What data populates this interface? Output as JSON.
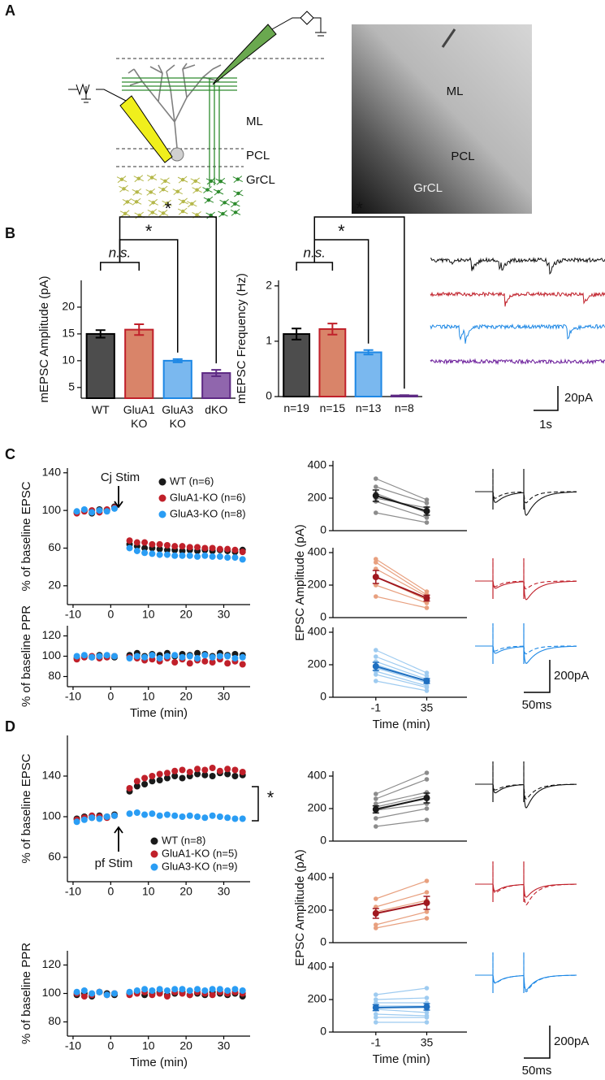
{
  "panel_labels": [
    "A",
    "B",
    "C",
    "D"
  ],
  "schematic": {
    "labels": [
      "ML",
      "PCL",
      "GrCL"
    ]
  },
  "micrograph": {
    "labels": [
      "ML",
      "PCL",
      "GrCL"
    ]
  },
  "traces_B": {
    "scale_y": "20pA",
    "scale_x": "1s"
  },
  "traces_C": {
    "scale_y": "200pA",
    "scale_x": "50ms"
  },
  "traces_D": {
    "scale_y": "200pA",
    "scale_x": "50ms"
  },
  "chart_data": [
    {
      "type": "bar",
      "ylabel": "mEPSC Amplitude (pA)",
      "categories": [
        "WT",
        "GluA1 KO",
        "GluA3 KO",
        "dKO"
      ],
      "values": [
        15,
        15.8,
        10,
        7.7
      ],
      "errors": [
        0.7,
        1,
        0.3,
        0.6
      ],
      "colors": [
        "#4d4d4d",
        "#d98469",
        "#7ab8ef",
        "#9066ad"
      ],
      "edge_colors": [
        "#000000",
        "#c0202a",
        "#1e88e5",
        "#5e2a84"
      ],
      "ylim": [
        3,
        25
      ],
      "yticks": [
        5,
        10,
        15,
        20
      ],
      "annotations": [
        "n.s.",
        "*",
        "*"
      ]
    },
    {
      "type": "bar",
      "ylabel": "mEPSC Frequency (Hz)",
      "categories": [
        "n=19",
        "n=15",
        "n=13",
        "n=8"
      ],
      "values": [
        1.13,
        1.22,
        0.8,
        0.02
      ],
      "errors": [
        0.1,
        0.1,
        0.04,
        0.005
      ],
      "colors": [
        "#4d4d4d",
        "#d98469",
        "#7ab8ef",
        "#9066ad"
      ],
      "edge_colors": [
        "#000000",
        "#c0202a",
        "#1e88e5",
        "#5e2a84"
      ],
      "ylim": [
        0,
        2.1
      ],
      "yticks": [
        0,
        1,
        2
      ],
      "annotations": [
        "n.s.",
        "*",
        "*"
      ]
    },
    {
      "type": "scatter",
      "ylabel": "% of baseline EPSC",
      "stim": "Cj Stim",
      "x": [
        -9,
        -7,
        -5,
        -3,
        -1,
        1,
        5,
        7,
        9,
        11,
        13,
        15,
        17,
        19,
        21,
        23,
        25,
        27,
        29,
        31,
        33,
        35
      ],
      "xlim": [
        -11.5,
        37
      ],
      "xticks": [
        -10,
        0,
        10,
        20,
        30
      ],
      "ylim": [
        0,
        145
      ],
      "yticks": [
        20,
        60,
        100,
        140
      ],
      "series": [
        {
          "name": "WT (n=6)",
          "color": "#1a1a1a",
          "values": [
            98,
            100,
            97,
            101,
            100,
            104,
            64,
            62,
            60,
            60,
            59,
            58,
            58,
            57,
            58,
            57,
            58,
            57,
            58,
            57,
            56,
            58
          ]
        },
        {
          "name": "GluA1-KO (n=6)",
          "color": "#c0202a",
          "values": [
            97,
            99,
            100,
            98,
            101,
            103,
            68,
            66,
            66,
            64,
            64,
            63,
            62,
            62,
            61,
            61,
            60,
            60,
            59,
            59,
            58,
            56
          ]
        },
        {
          "name": "GluA3-KO (n=8)",
          "color": "#2a9df4",
          "values": [
            99,
            101,
            98,
            100,
            99,
            102,
            60,
            57,
            55,
            54,
            53,
            53,
            52,
            52,
            52,
            51,
            52,
            51,
            51,
            50,
            50,
            48
          ]
        }
      ]
    },
    {
      "type": "scatter",
      "ylabel": "% of baseline PPR",
      "xlabel": "Time (min)",
      "x": [
        -9,
        -7,
        -5,
        -3,
        -1,
        1,
        5,
        7,
        9,
        11,
        13,
        15,
        17,
        19,
        21,
        23,
        25,
        27,
        29,
        31,
        33,
        35
      ],
      "xlim": [
        -11.5,
        37
      ],
      "xticks": [
        -10,
        0,
        10,
        20,
        30
      ],
      "ylim": [
        70,
        130
      ],
      "yticks": [
        80,
        100,
        120
      ],
      "series": [
        {
          "color": "#1a1a1a",
          "values": [
            98,
            100,
            99,
            101,
            100,
            99,
            101,
            103,
            100,
            102,
            101,
            103,
            100,
            102,
            101,
            103,
            102,
            100,
            103,
            101,
            102,
            101
          ]
        },
        {
          "color": "#c0202a",
          "values": [
            97,
            99,
            100,
            98,
            99,
            100,
            99,
            98,
            96,
            97,
            95,
            98,
            94,
            97,
            93,
            96,
            95,
            94,
            97,
            93,
            95,
            92
          ]
        },
        {
          "color": "#2a9df4",
          "values": [
            100,
            101,
            99,
            100,
            101,
            100,
            98,
            100,
            99,
            101,
            98,
            100,
            101,
            99,
            100,
            98,
            101,
            99,
            100,
            100,
            98,
            99
          ]
        }
      ]
    },
    {
      "type": "paired",
      "ylim": [
        0,
        430
      ],
      "yticks": [
        0,
        200,
        400
      ],
      "color": "#1a1a1a",
      "cell_color": "#8c8c8c",
      "cells": [
        [
          320,
          190
        ],
        [
          270,
          170
        ],
        [
          230,
          110
        ],
        [
          180,
          80
        ],
        [
          110,
          50
        ],
        [
          200,
          140
        ]
      ],
      "mean": [
        215,
        120
      ],
      "sem": [
        35,
        25
      ]
    },
    {
      "type": "paired",
      "ylabel": "EPSC Amplitude (pA)",
      "ylim": [
        0,
        430
      ],
      "yticks": [
        0,
        200,
        400
      ],
      "color": "#a01820",
      "cell_color": "#e8a07f",
      "cells": [
        [
          360,
          160
        ],
        [
          340,
          140
        ],
        [
          300,
          130
        ],
        [
          250,
          110
        ],
        [
          200,
          90
        ],
        [
          130,
          60
        ]
      ],
      "mean": [
        250,
        120
      ],
      "sem": [
        40,
        18
      ]
    },
    {
      "type": "paired",
      "xlabel": "Time (min)",
      "categories": [
        "-1",
        "35"
      ],
      "ylim": [
        0,
        430
      ],
      "yticks": [
        0,
        200,
        400
      ],
      "color": "#1e6fc0",
      "cell_color": "#9ecbf0",
      "cells": [
        [
          290,
          150
        ],
        [
          250,
          130
        ],
        [
          220,
          110
        ],
        [
          200,
          100
        ],
        [
          180,
          90
        ],
        [
          160,
          70
        ],
        [
          140,
          60
        ],
        [
          100,
          40
        ]
      ],
      "mean": [
        190,
        100
      ],
      "sem": [
        25,
        15
      ]
    },
    {
      "type": "scatter",
      "ylabel": "% of baseline EPSC",
      "stim": "pf Stim",
      "annotation": "*",
      "x": [
        -9,
        -7,
        -5,
        -3,
        -1,
        1,
        5,
        7,
        9,
        11,
        13,
        15,
        17,
        19,
        21,
        23,
        25,
        27,
        29,
        31,
        33,
        35
      ],
      "xlim": [
        -11.5,
        37
      ],
      "xticks": [
        -10,
        0,
        10,
        20,
        30
      ],
      "ylim": [
        36,
        180
      ],
      "yticks": [
        60,
        100,
        140
      ],
      "series": [
        {
          "name": "WT (n=8)",
          "color": "#1a1a1a",
          "values": [
            98,
            100,
            99,
            101,
            100,
            102,
            125,
            130,
            132,
            135,
            136,
            138,
            140,
            138,
            140,
            142,
            141,
            140,
            143,
            142,
            140,
            141
          ]
        },
        {
          "name": "GluA1-KO (n=5)",
          "color": "#c0202a",
          "values": [
            97,
            99,
            101,
            100,
            99,
            101,
            128,
            135,
            138,
            140,
            142,
            143,
            145,
            146,
            144,
            147,
            146,
            148,
            145,
            147,
            146,
            144
          ]
        },
        {
          "name": "GluA3-KO (n=9)",
          "color": "#2a9df4",
          "values": [
            95,
            97,
            99,
            98,
            100,
            101,
            103,
            104,
            102,
            103,
            101,
            102,
            101,
            100,
            101,
            100,
            99,
            101,
            100,
            99,
            98,
            98
          ]
        }
      ]
    },
    {
      "type": "scatter",
      "ylabel": "% of baseline PPR",
      "xlabel": "Time (min)",
      "x": [
        -9,
        -7,
        -5,
        -3,
        -1,
        1,
        5,
        7,
        9,
        11,
        13,
        15,
        17,
        19,
        21,
        23,
        25,
        27,
        29,
        31,
        33,
        35
      ],
      "xlim": [
        -11.5,
        37
      ],
      "xticks": [
        -10,
        0,
        10,
        20,
        30
      ],
      "ylim": [
        70,
        130
      ],
      "yticks": [
        80,
        100,
        120
      ],
      "series": [
        {
          "color": "#1a1a1a",
          "values": [
            99,
            100,
            98,
            101,
            100,
            99,
            100,
            101,
            99,
            100,
            101,
            99,
            100,
            101,
            99,
            100,
            99,
            101,
            100,
            99,
            100,
            98
          ]
        },
        {
          "color": "#c0202a",
          "values": [
            100,
            98,
            99,
            101,
            99,
            100,
            99,
            100,
            101,
            99,
            100,
            98,
            101,
            100,
            99,
            101,
            100,
            99,
            101,
            100,
            101,
            100
          ]
        },
        {
          "color": "#2a9df4",
          "values": [
            101,
            102,
            100,
            101,
            99,
            100,
            101,
            102,
            103,
            102,
            103,
            102,
            103,
            103,
            102,
            103,
            102,
            103,
            103,
            102,
            103,
            102
          ]
        }
      ]
    },
    {
      "type": "paired",
      "ylim": [
        0,
        430
      ],
      "yticks": [
        0,
        200,
        400
      ],
      "color": "#1a1a1a",
      "cell_color": "#8c8c8c",
      "cells": [
        [
          290,
          420
        ],
        [
          260,
          380
        ],
        [
          230,
          300
        ],
        [
          210,
          280
        ],
        [
          200,
          260
        ],
        [
          190,
          230
        ],
        [
          140,
          200
        ],
        [
          90,
          130
        ]
      ],
      "mean": [
        195,
        265
      ],
      "sem": [
        22,
        30
      ]
    },
    {
      "type": "paired",
      "ylabel": "EPSC Amplitude (pA)",
      "ylim": [
        0,
        430
      ],
      "yticks": [
        0,
        200,
        400
      ],
      "color": "#a01820",
      "cell_color": "#e8a07f",
      "cells": [
        [
          270,
          380
        ],
        [
          220,
          310
        ],
        [
          190,
          260
        ],
        [
          110,
          190
        ],
        [
          90,
          150
        ]
      ],
      "mean": [
        180,
        245
      ],
      "sem": [
        30,
        40
      ]
    },
    {
      "type": "paired",
      "xlabel": "Time (min)",
      "categories": [
        "-1",
        "35"
      ],
      "ylim": [
        0,
        430
      ],
      "yticks": [
        0,
        200,
        400
      ],
      "color": "#1e6fc0",
      "cell_color": "#9ecbf0",
      "cells": [
        [
          230,
          270
        ],
        [
          200,
          210
        ],
        [
          180,
          180
        ],
        [
          160,
          160
        ],
        [
          150,
          150
        ],
        [
          140,
          120
        ],
        [
          110,
          100
        ],
        [
          90,
          90
        ],
        [
          60,
          60
        ]
      ],
      "mean": [
        150,
        155
      ],
      "sem": [
        18,
        20
      ]
    }
  ]
}
